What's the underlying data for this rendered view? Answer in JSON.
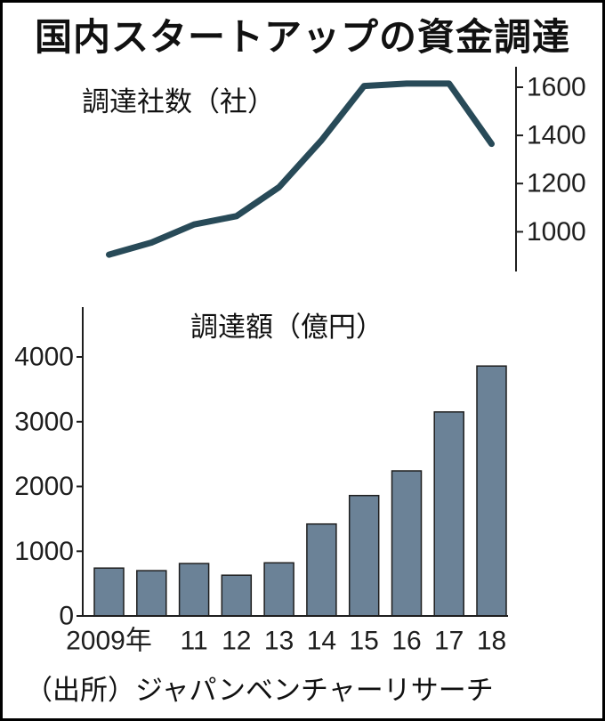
{
  "title": "国内スタートアップの資金調達",
  "source": "（出所）ジャパンベンチャーリサーチ",
  "colors": {
    "line": "#284a58",
    "bar_fill": "#6b8297",
    "bar_stroke": "#1e1e1e",
    "axis": "#1e1e1e",
    "text": "#111111",
    "frame": "#000000",
    "background": "#ffffff"
  },
  "chart_data": [
    {
      "type": "line",
      "title": "調達社数（社）",
      "x": [
        2009,
        2010,
        2011,
        2012,
        2013,
        2014,
        2015,
        2016,
        2017,
        2018
      ],
      "series": [
        {
          "values": [
            905,
            955,
            1030,
            1065,
            1185,
            1380,
            1605,
            1615,
            1615,
            1365
          ]
        }
      ],
      "yticks": [
        1000,
        1200,
        1400,
        1600
      ],
      "ylim": [
        835,
        1685
      ],
      "y_axis_position": "right",
      "grid": false
    },
    {
      "type": "bar",
      "title": "調達額（億円）",
      "x": [
        2009,
        2010,
        2011,
        2012,
        2013,
        2014,
        2015,
        2016,
        2017,
        2018
      ],
      "values": [
        740,
        700,
        810,
        630,
        820,
        1420,
        1860,
        2240,
        3150,
        3860
      ],
      "xticks": [
        {
          "x": 2009,
          "label": "2009年"
        },
        {
          "x": 2011,
          "label": "11"
        },
        {
          "x": 2012,
          "label": "12"
        },
        {
          "x": 2013,
          "label": "13"
        },
        {
          "x": 2014,
          "label": "14"
        },
        {
          "x": 2015,
          "label": "15"
        },
        {
          "x": 2016,
          "label": "16"
        },
        {
          "x": 2017,
          "label": "17"
        },
        {
          "x": 2018,
          "label": "18"
        }
      ],
      "yticks": [
        0,
        1000,
        2000,
        3000,
        4000
      ],
      "ylim": [
        0,
        4770
      ],
      "y_axis_position": "left",
      "grid": false
    }
  ]
}
